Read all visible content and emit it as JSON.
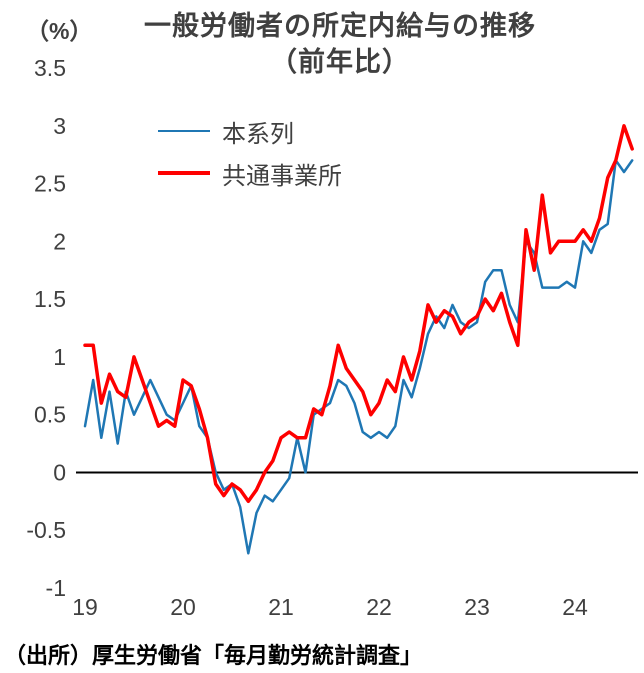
{
  "title": {
    "line1": "一般労働者の所定内給与の推移",
    "line2": "（前年比）"
  },
  "y_unit_label": "（%）",
  "source": "（出所）厚生労働省「毎月勤労統計調査」",
  "colors": {
    "series_main": "#1f77b4",
    "series_common": "#fe0000",
    "axis_text": "#404040",
    "zero_line": "#000000"
  },
  "chart_data": {
    "type": "line",
    "x_description": "monthly data, Jan 2019 - Aug 2024",
    "x_tick_years": [
      19,
      20,
      21,
      22,
      23,
      24
    ],
    "y_ticks": [
      3.5,
      3,
      2.5,
      2,
      1.5,
      1,
      0.5,
      0,
      -0.5,
      -1
    ],
    "ylim": [
      -1,
      3.5
    ],
    "ylabel": "（%）",
    "grid": false,
    "legend_position": "upper-left-inside",
    "series": [
      {
        "name": "本系列",
        "color": "#1f77b4",
        "width": 2.5,
        "values": [
          0.4,
          0.8,
          0.3,
          0.7,
          0.25,
          0.7,
          0.5,
          0.65,
          0.8,
          0.65,
          0.5,
          0.45,
          0.6,
          0.75,
          0.4,
          0.3,
          0.0,
          -0.15,
          -0.1,
          -0.3,
          -0.7,
          -0.35,
          -0.2,
          -0.25,
          -0.15,
          -0.05,
          0.3,
          0.0,
          0.5,
          0.55,
          0.6,
          0.8,
          0.75,
          0.6,
          0.35,
          0.3,
          0.35,
          0.3,
          0.4,
          0.8,
          0.65,
          0.9,
          1.2,
          1.35,
          1.25,
          1.45,
          1.3,
          1.25,
          1.3,
          1.65,
          1.75,
          1.75,
          1.45,
          1.3,
          2.0,
          1.9,
          1.6,
          1.6,
          1.6,
          1.65,
          1.6,
          2.0,
          1.9,
          2.1,
          2.15,
          2.7,
          2.6,
          2.7
        ]
      },
      {
        "name": "共通事業所",
        "color": "#fe0000",
        "width": 3.5,
        "values": [
          1.1,
          1.1,
          0.6,
          0.85,
          0.7,
          0.65,
          1.0,
          0.8,
          0.6,
          0.4,
          0.45,
          0.4,
          0.8,
          0.75,
          0.55,
          0.3,
          -0.1,
          -0.2,
          -0.1,
          -0.15,
          -0.25,
          -0.15,
          0.0,
          0.1,
          0.3,
          0.35,
          0.3,
          0.3,
          0.55,
          0.5,
          0.75,
          1.1,
          0.9,
          0.8,
          0.7,
          0.5,
          0.6,
          0.8,
          0.7,
          1.0,
          0.8,
          1.05,
          1.45,
          1.3,
          1.4,
          1.35,
          1.2,
          1.3,
          1.35,
          1.5,
          1.4,
          1.55,
          1.3,
          1.1,
          2.1,
          1.75,
          2.4,
          1.9,
          2.0,
          2.0,
          2.0,
          2.1,
          2.0,
          2.2,
          2.55,
          2.7,
          3.0,
          2.8
        ]
      }
    ]
  }
}
